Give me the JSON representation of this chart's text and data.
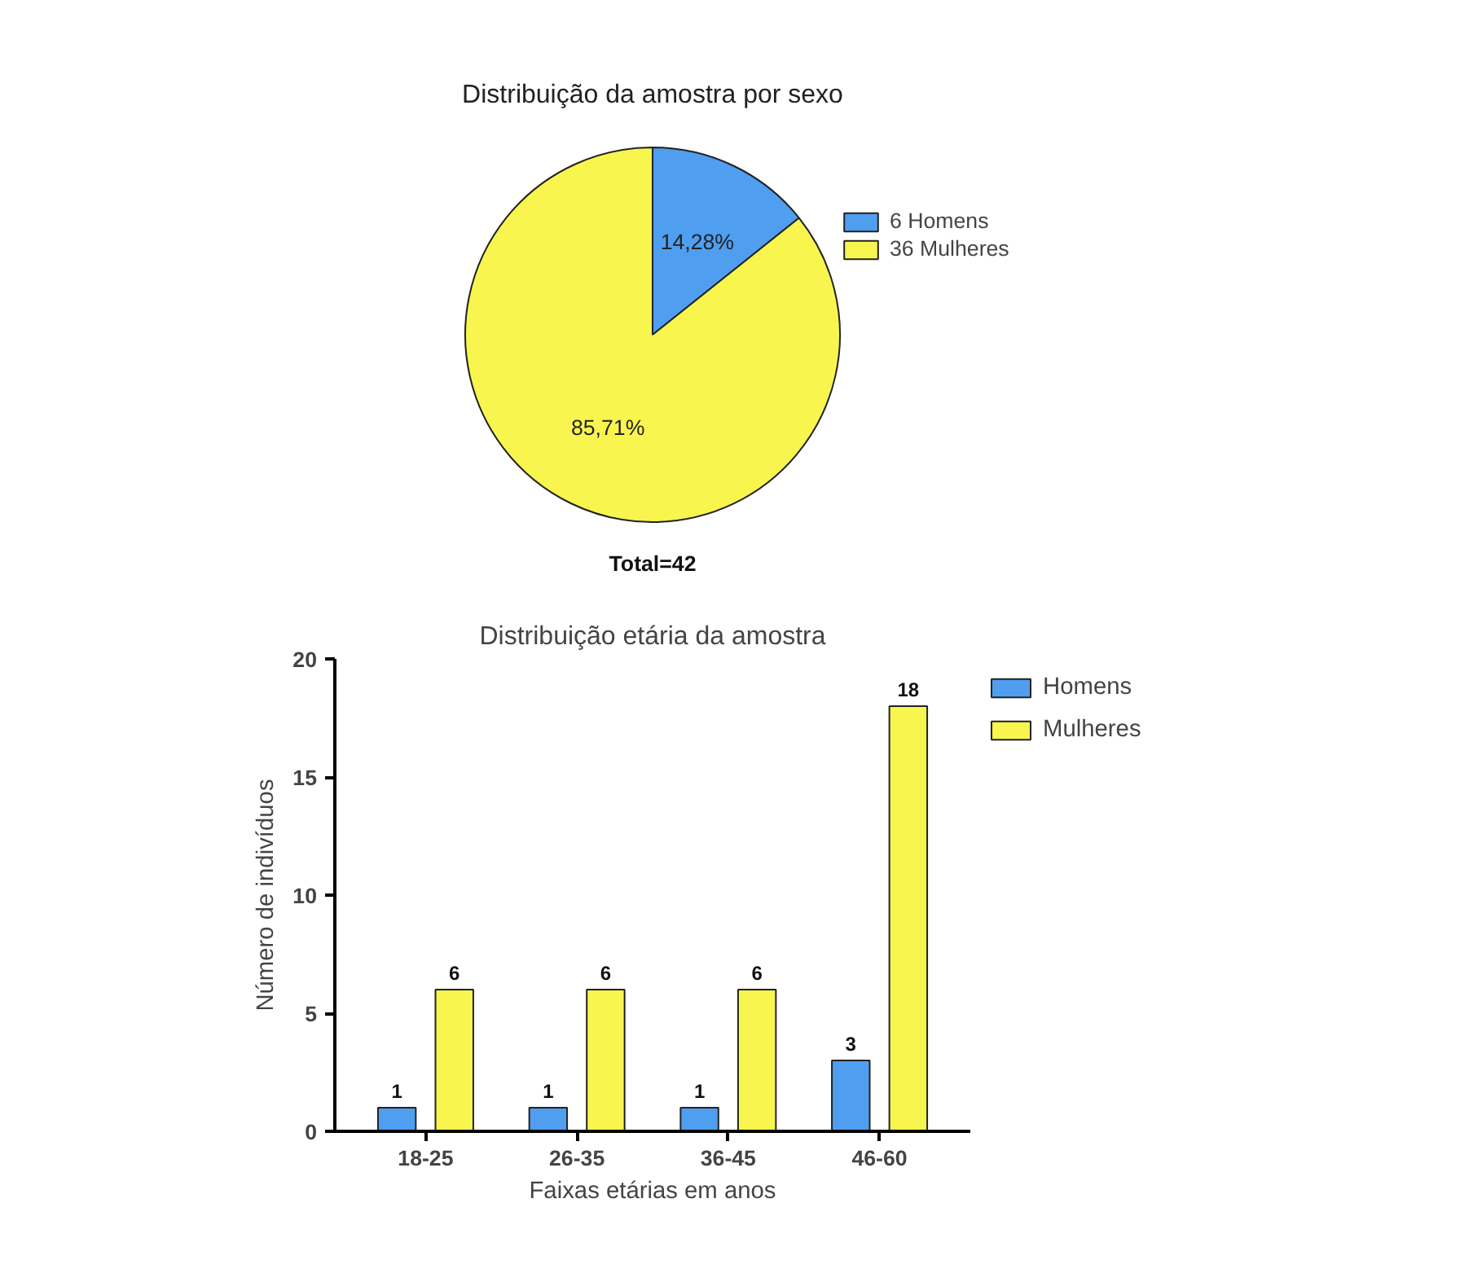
{
  "chart_data": [
    {
      "type": "pie",
      "title": "Distribuição da amostra por sexo",
      "categories": [
        "6 Homens",
        "36 Mulheres"
      ],
      "values": [
        14.28,
        85.71
      ],
      "colors": [
        "#4f9ef0",
        "#f9f54f"
      ],
      "value_labels": [
        "14,28%",
        "85,71%"
      ],
      "legend": "top right",
      "annotations": [
        "Total=42"
      ]
    },
    {
      "type": "bar",
      "title": "Distribuição etária da amostra",
      "xlabel": "Faixas etárias em anos",
      "ylabel": "Número de indivíduos",
      "categories": [
        "18-25",
        "26-35",
        "36-45",
        "46-60"
      ],
      "series": [
        {
          "name": "Homens",
          "color": "#4f9ef0",
          "values": [
            1,
            1,
            1,
            3
          ]
        },
        {
          "name": "Mulheres",
          "color": "#f9f54f",
          "values": [
            6,
            6,
            6,
            18
          ]
        }
      ],
      "ylim": [
        0,
        20
      ],
      "yticks": [
        0,
        5,
        10,
        15,
        20
      ],
      "data_labels": true,
      "legend": "top right",
      "grid": false
    }
  ]
}
